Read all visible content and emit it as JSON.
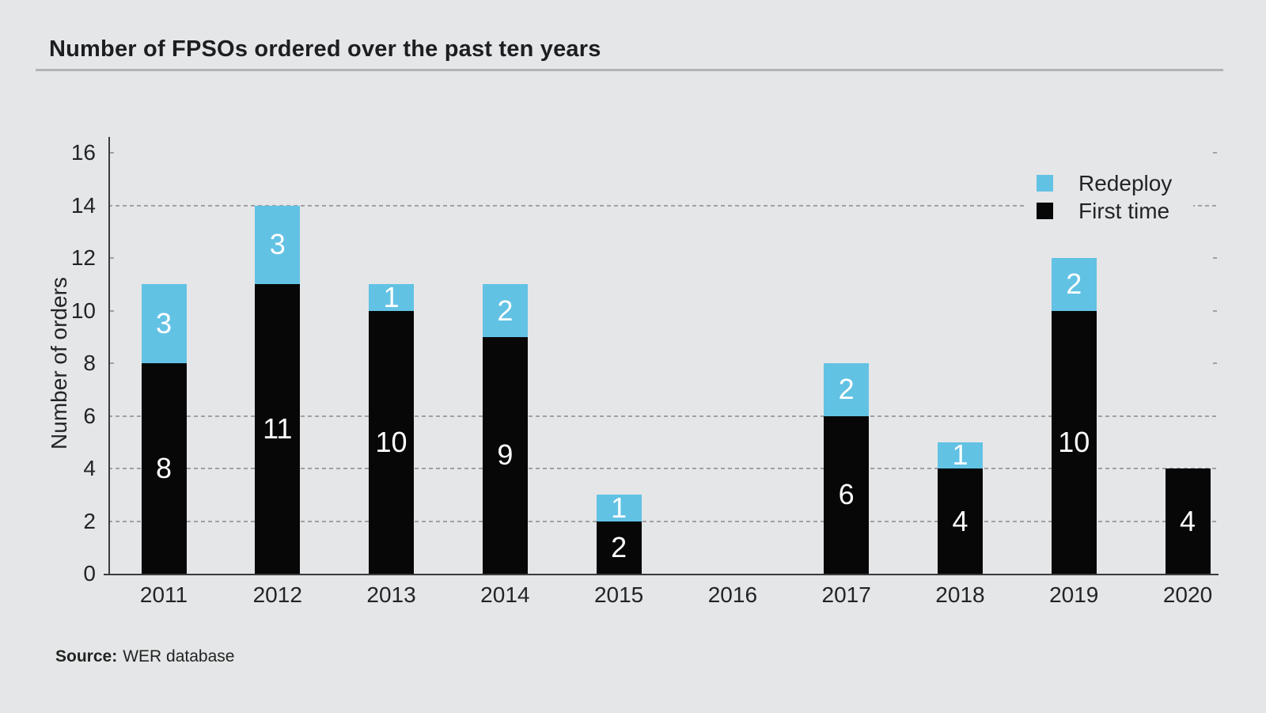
{
  "title": "Number of FPSOs ordered over the past ten years",
  "source": {
    "label": "Source:",
    "text": "WER database"
  },
  "legend": {
    "items": [
      {
        "label": "Redeploy",
        "color": "#62c2e4"
      },
      {
        "label": "First time",
        "color": "#070708"
      }
    ]
  },
  "colors": {
    "background": "#e5e6e7",
    "axis": "#3a3b3c",
    "gridline": "#9fa1a3",
    "title_rule": "#b1b3b5",
    "bar_first_time": "#070708",
    "bar_redeploy": "#62c2e4",
    "value_label": "#ffffff",
    "text": "#232427"
  },
  "chart_data": {
    "type": "bar",
    "stacked": true,
    "title": "Number of FPSOs ordered over the past ten years",
    "categories": [
      "2011",
      "2012",
      "2013",
      "2014",
      "2015",
      "2016",
      "2017",
      "2018",
      "2019",
      "2020"
    ],
    "series": [
      {
        "name": "First time",
        "color": "#070708",
        "values": [
          8,
          11,
          10,
          9,
          2,
          0,
          6,
          4,
          10,
          4
        ]
      },
      {
        "name": "Redeploy",
        "color": "#62c2e4",
        "values": [
          3,
          3,
          1,
          2,
          1,
          0,
          2,
          1,
          2,
          0
        ]
      }
    ],
    "totals": [
      11,
      14,
      11,
      11,
      3,
      0,
      8,
      5,
      12,
      4
    ],
    "xlabel": "",
    "ylabel": "Number of orders",
    "ylim": [
      0,
      16
    ],
    "ytick_step": 2,
    "grid": "horizontal dashed",
    "gridlines_full": [
      2,
      4,
      6,
      14
    ],
    "gridlines_stub": [
      8,
      10,
      12,
      16
    ],
    "legend_position": "top-right inside plot",
    "value_labels": "white numbers inside segments, omitted when value is 0"
  }
}
